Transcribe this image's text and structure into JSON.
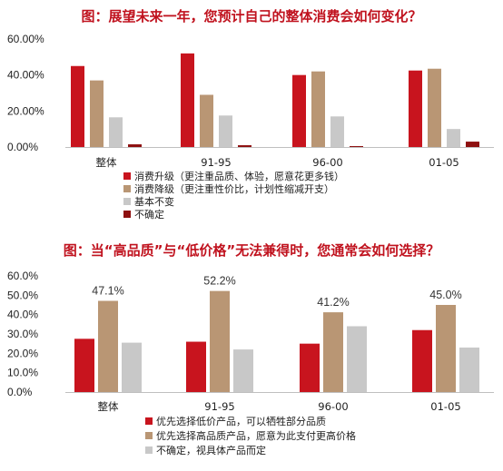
{
  "chart_data": [
    {
      "type": "bar",
      "title": "图：展望未来一年，您预计自己的整体消费会如何变化？",
      "categories": [
        "整体",
        "91-95",
        "96-00",
        "01-05"
      ],
      "yticks": [
        "0.00%",
        "20.00%",
        "40.00%",
        "60.00%"
      ],
      "ylim": [
        0,
        60
      ],
      "series": [
        {
          "name": "消费升级（更注重品质、体验，愿意花更多钱）",
          "color": "#c8141e",
          "values": [
            45,
            52,
            40,
            42.5
          ]
        },
        {
          "name": "消费降级（更注重性价比，计划性缩减开支）",
          "color": "#b99674",
          "values": [
            37,
            29,
            42,
            43.5
          ]
        },
        {
          "name": "基本不变",
          "color": "#c8c8c8",
          "values": [
            16.5,
            17.5,
            17,
            10
          ]
        },
        {
          "name": "不确定",
          "color": "#8e1010",
          "values": [
            1.5,
            1,
            0.5,
            3
          ]
        }
      ],
      "legend_position": "bottom-left"
    },
    {
      "type": "bar",
      "title": "图：当“高品质”与“低价格”无法兼得时，您通常会如何选择？",
      "categories": [
        "整体",
        "91-95",
        "96-00",
        "01-05"
      ],
      "yticks": [
        "0.0%",
        "10.0%",
        "20.0%",
        "30.0%",
        "40.0%",
        "50.0%",
        "60.0%"
      ],
      "ylim": [
        0,
        60
      ],
      "series": [
        {
          "name": "优先选择低价产品，可以牺牲部分品质",
          "color": "#c8141e",
          "values": [
            27.5,
            26,
            25,
            32
          ]
        },
        {
          "name": "优先选择高品质产品，愿意为此支付更高价格",
          "color": "#b99674",
          "values": [
            47.1,
            52.2,
            41.2,
            45.0
          ],
          "labels": [
            "47.1%",
            "52.2%",
            "41.2%",
            "45.0%"
          ]
        },
        {
          "name": "不确定，视具体产品而定",
          "color": "#c8c8c8",
          "values": [
            25.5,
            22,
            34,
            23
          ]
        }
      ],
      "legend_position": "bottom-left"
    }
  ]
}
